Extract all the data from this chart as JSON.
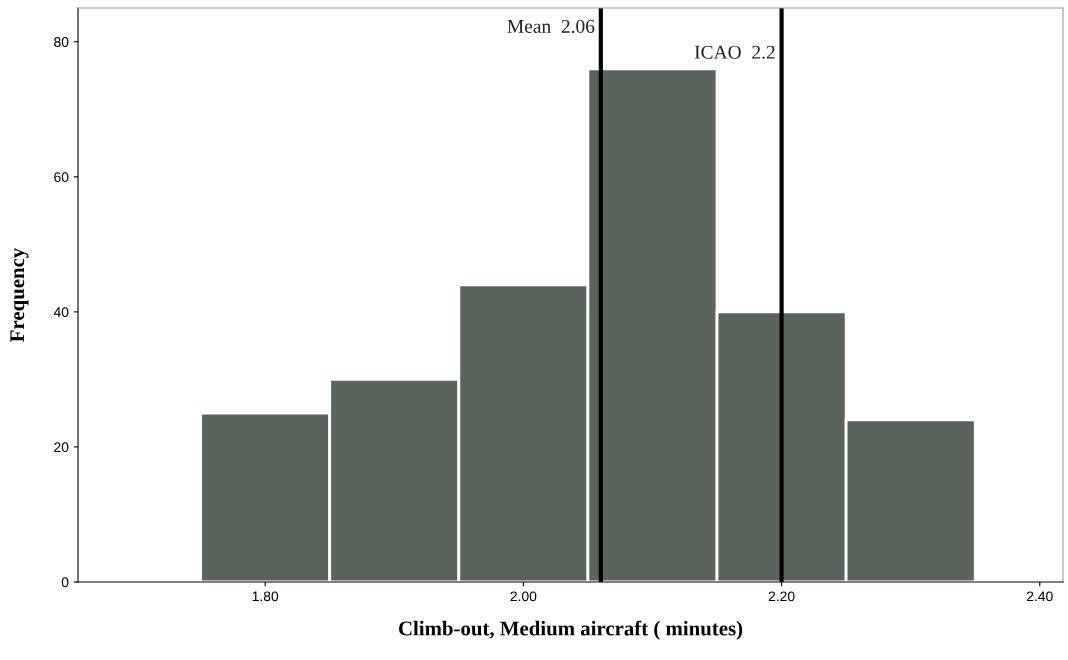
{
  "chart_data": {
    "type": "histogram",
    "xlabel": "Climb-out, Medium aircraft ( minutes)",
    "ylabel": "Frequency",
    "bins": [
      1.75,
      1.85,
      1.95,
      2.05,
      2.15,
      2.25,
      2.35
    ],
    "values": [
      25,
      30,
      44,
      76,
      40,
      24
    ],
    "color": "#5a635c",
    "xlim": [
      1.655,
      2.418
    ],
    "xticks": [
      {
        "value": 1.8,
        "label": "1.80"
      },
      {
        "value": 2.0,
        "label": "2.00"
      },
      {
        "value": 2.2,
        "label": "2.20"
      },
      {
        "value": 2.4,
        "label": "2.40"
      }
    ],
    "ylim": [
      0,
      85
    ],
    "yticks": [
      0,
      20,
      40,
      60,
      80
    ],
    "ref_lines": [
      {
        "axis": "x",
        "value": 2.06,
        "label": "Mean  2.06",
        "color": "#000000"
      },
      {
        "axis": "x",
        "value": 2.2,
        "label": "ICAO  2.2",
        "color": "#000000"
      }
    ],
    "grid": false,
    "legend": false
  }
}
